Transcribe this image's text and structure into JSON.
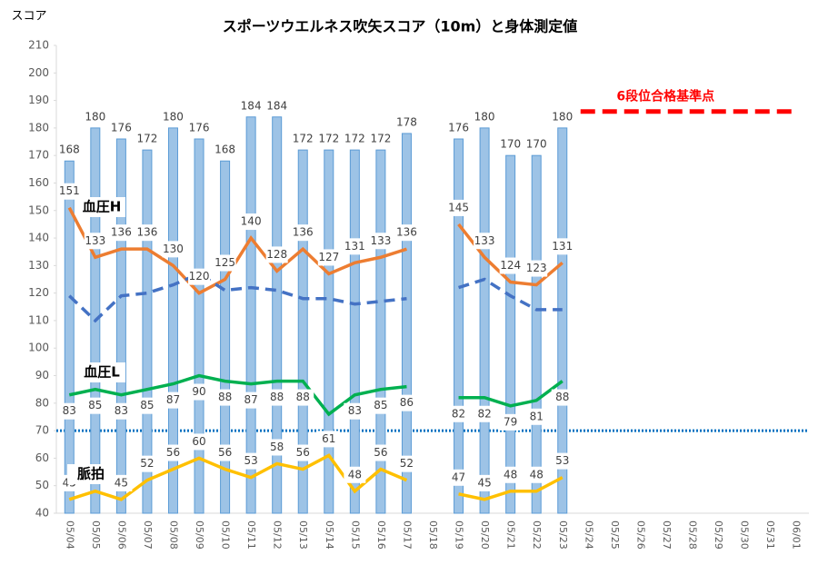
{
  "chart_data": {
    "type": "bar-line",
    "title": "スポーツウエルネス吹矢スコア（10m）と身体測定値",
    "y_label": "スコア",
    "categories": [
      "05/04",
      "05/05",
      "05/06",
      "05/07",
      "05/08",
      "05/09",
      "05/10",
      "05/11",
      "05/12",
      "05/13",
      "05/14",
      "05/15",
      "05/16",
      "05/17",
      "05/18",
      "05/19",
      "05/20",
      "05/21",
      "05/22",
      "05/23",
      "05/24",
      "05/25",
      "05/26",
      "05/27",
      "05/28",
      "05/29",
      "05/30",
      "05/31",
      "06/01"
    ],
    "ylim": [
      40,
      210
    ],
    "yticks": [
      40,
      50,
      60,
      70,
      80,
      90,
      100,
      110,
      120,
      130,
      140,
      150,
      160,
      170,
      180,
      190,
      200,
      210
    ],
    "grid": false,
    "series": [
      {
        "kind": "bar",
        "color": "#9dc3e6",
        "stroke": "#5b9bd5",
        "label_position": "above",
        "values": [
          168,
          180,
          176,
          172,
          180,
          176,
          168,
          184,
          184,
          172,
          172,
          172,
          172,
          178,
          null,
          176,
          180,
          170,
          170,
          180,
          null,
          null,
          null,
          null,
          null,
          null,
          null,
          null,
          null
        ]
      },
      {
        "kind": "line",
        "name": "血圧H",
        "color": "#ed7d31",
        "dash": "solid",
        "label_position": "above",
        "values": [
          151,
          133,
          136,
          136,
          130,
          120,
          125,
          140,
          128,
          136,
          127,
          131,
          133,
          136,
          null,
          145,
          133,
          124,
          123,
          131,
          null,
          null,
          null,
          null,
          null,
          null,
          null,
          null,
          null
        ]
      },
      {
        "kind": "line",
        "color": "#4472c4",
        "dash": "dashed",
        "values": [
          119,
          110,
          119,
          120,
          123,
          127,
          121,
          122,
          121,
          118,
          118,
          116,
          117,
          118,
          null,
          122,
          125,
          119,
          114,
          114,
          null,
          null,
          null,
          null,
          null,
          null,
          null,
          null,
          null
        ]
      },
      {
        "kind": "line",
        "name": "血圧L",
        "color": "#00b050",
        "dash": "solid",
        "label_position": "below",
        "values": [
          83,
          85,
          83,
          85,
          87,
          90,
          88,
          87,
          88,
          88,
          76,
          83,
          85,
          86,
          null,
          82,
          82,
          79,
          81,
          88,
          null,
          null,
          null,
          null,
          null,
          null,
          null,
          null,
          null
        ],
        "value_labels": [
          "83",
          "85",
          "83",
          "85",
          "87",
          "90",
          "88",
          "87",
          "88",
          "88",
          null,
          "83",
          "85",
          "86",
          null,
          "82",
          "82",
          "79",
          "81",
          "88",
          null,
          null,
          null,
          null,
          null,
          null,
          null,
          null,
          null
        ]
      },
      {
        "kind": "line",
        "name": "脈拍",
        "color": "#ffc000",
        "dash": "solid",
        "label_position": "above",
        "values": [
          45,
          48,
          45,
          52,
          56,
          60,
          56,
          53,
          58,
          56,
          61,
          48,
          56,
          52,
          null,
          47,
          45,
          48,
          48,
          53,
          null,
          null,
          null,
          null,
          null,
          null,
          null,
          null,
          null
        ]
      }
    ],
    "reference_lines": [
      {
        "value": 70,
        "color": "#0070c0",
        "style": "dotted"
      },
      {
        "value": 186,
        "from": "05/24",
        "to": "06/01",
        "color": "#ff0000",
        "style": "dashed",
        "label": "6段位合格基準点"
      }
    ]
  }
}
